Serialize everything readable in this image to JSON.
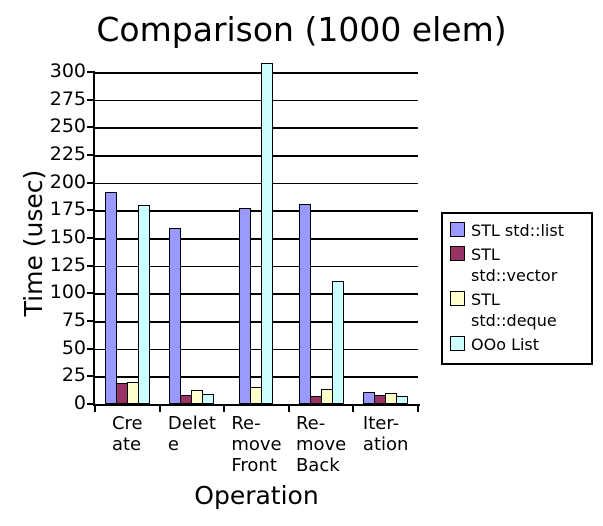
{
  "chart_data": {
    "type": "bar",
    "title": "Comparison (1000 elem)",
    "xlabel": "Operation",
    "ylabel": "Time (usec)",
    "ylim": [
      0,
      300
    ],
    "ytick_step": 25,
    "grid": true,
    "legend_position": "right",
    "categories": [
      "Create",
      "Delete",
      "Remove Front",
      "Remove Back",
      "Iteration"
    ],
    "xtick_display": [
      "Cre\nate",
      "Delet\ne",
      "Re-\nmove\nFront",
      "Re-\nmove\nBack",
      "Iter-\nation"
    ],
    "series": [
      {
        "name": "STL std::list",
        "color": "#9999FF",
        "values": [
          192,
          159,
          177,
          181,
          11
        ]
      },
      {
        "name": "STL std::vector",
        "color": "#993366",
        "values": [
          19,
          8,
          0,
          7,
          8
        ]
      },
      {
        "name": "STL std::deque",
        "color": "#FFFFCC",
        "values": [
          20,
          13,
          15,
          14,
          10
        ]
      },
      {
        "name": "OOo List",
        "color": "#CCFFFF",
        "values": [
          180,
          9,
          308,
          111,
          7
        ]
      }
    ],
    "legend_labels_display": [
      "STL std::list",
      "STL\nstd::vector",
      "STL std::deque",
      "OOo List"
    ],
    "colors": {
      "axis": "#000000",
      "text": "#000000",
      "background": "#FFFFFF"
    },
    "notes_visible": {
      "overflow_bar": "OOo List bar at Remove Front extends above 300 axis maximum"
    }
  }
}
